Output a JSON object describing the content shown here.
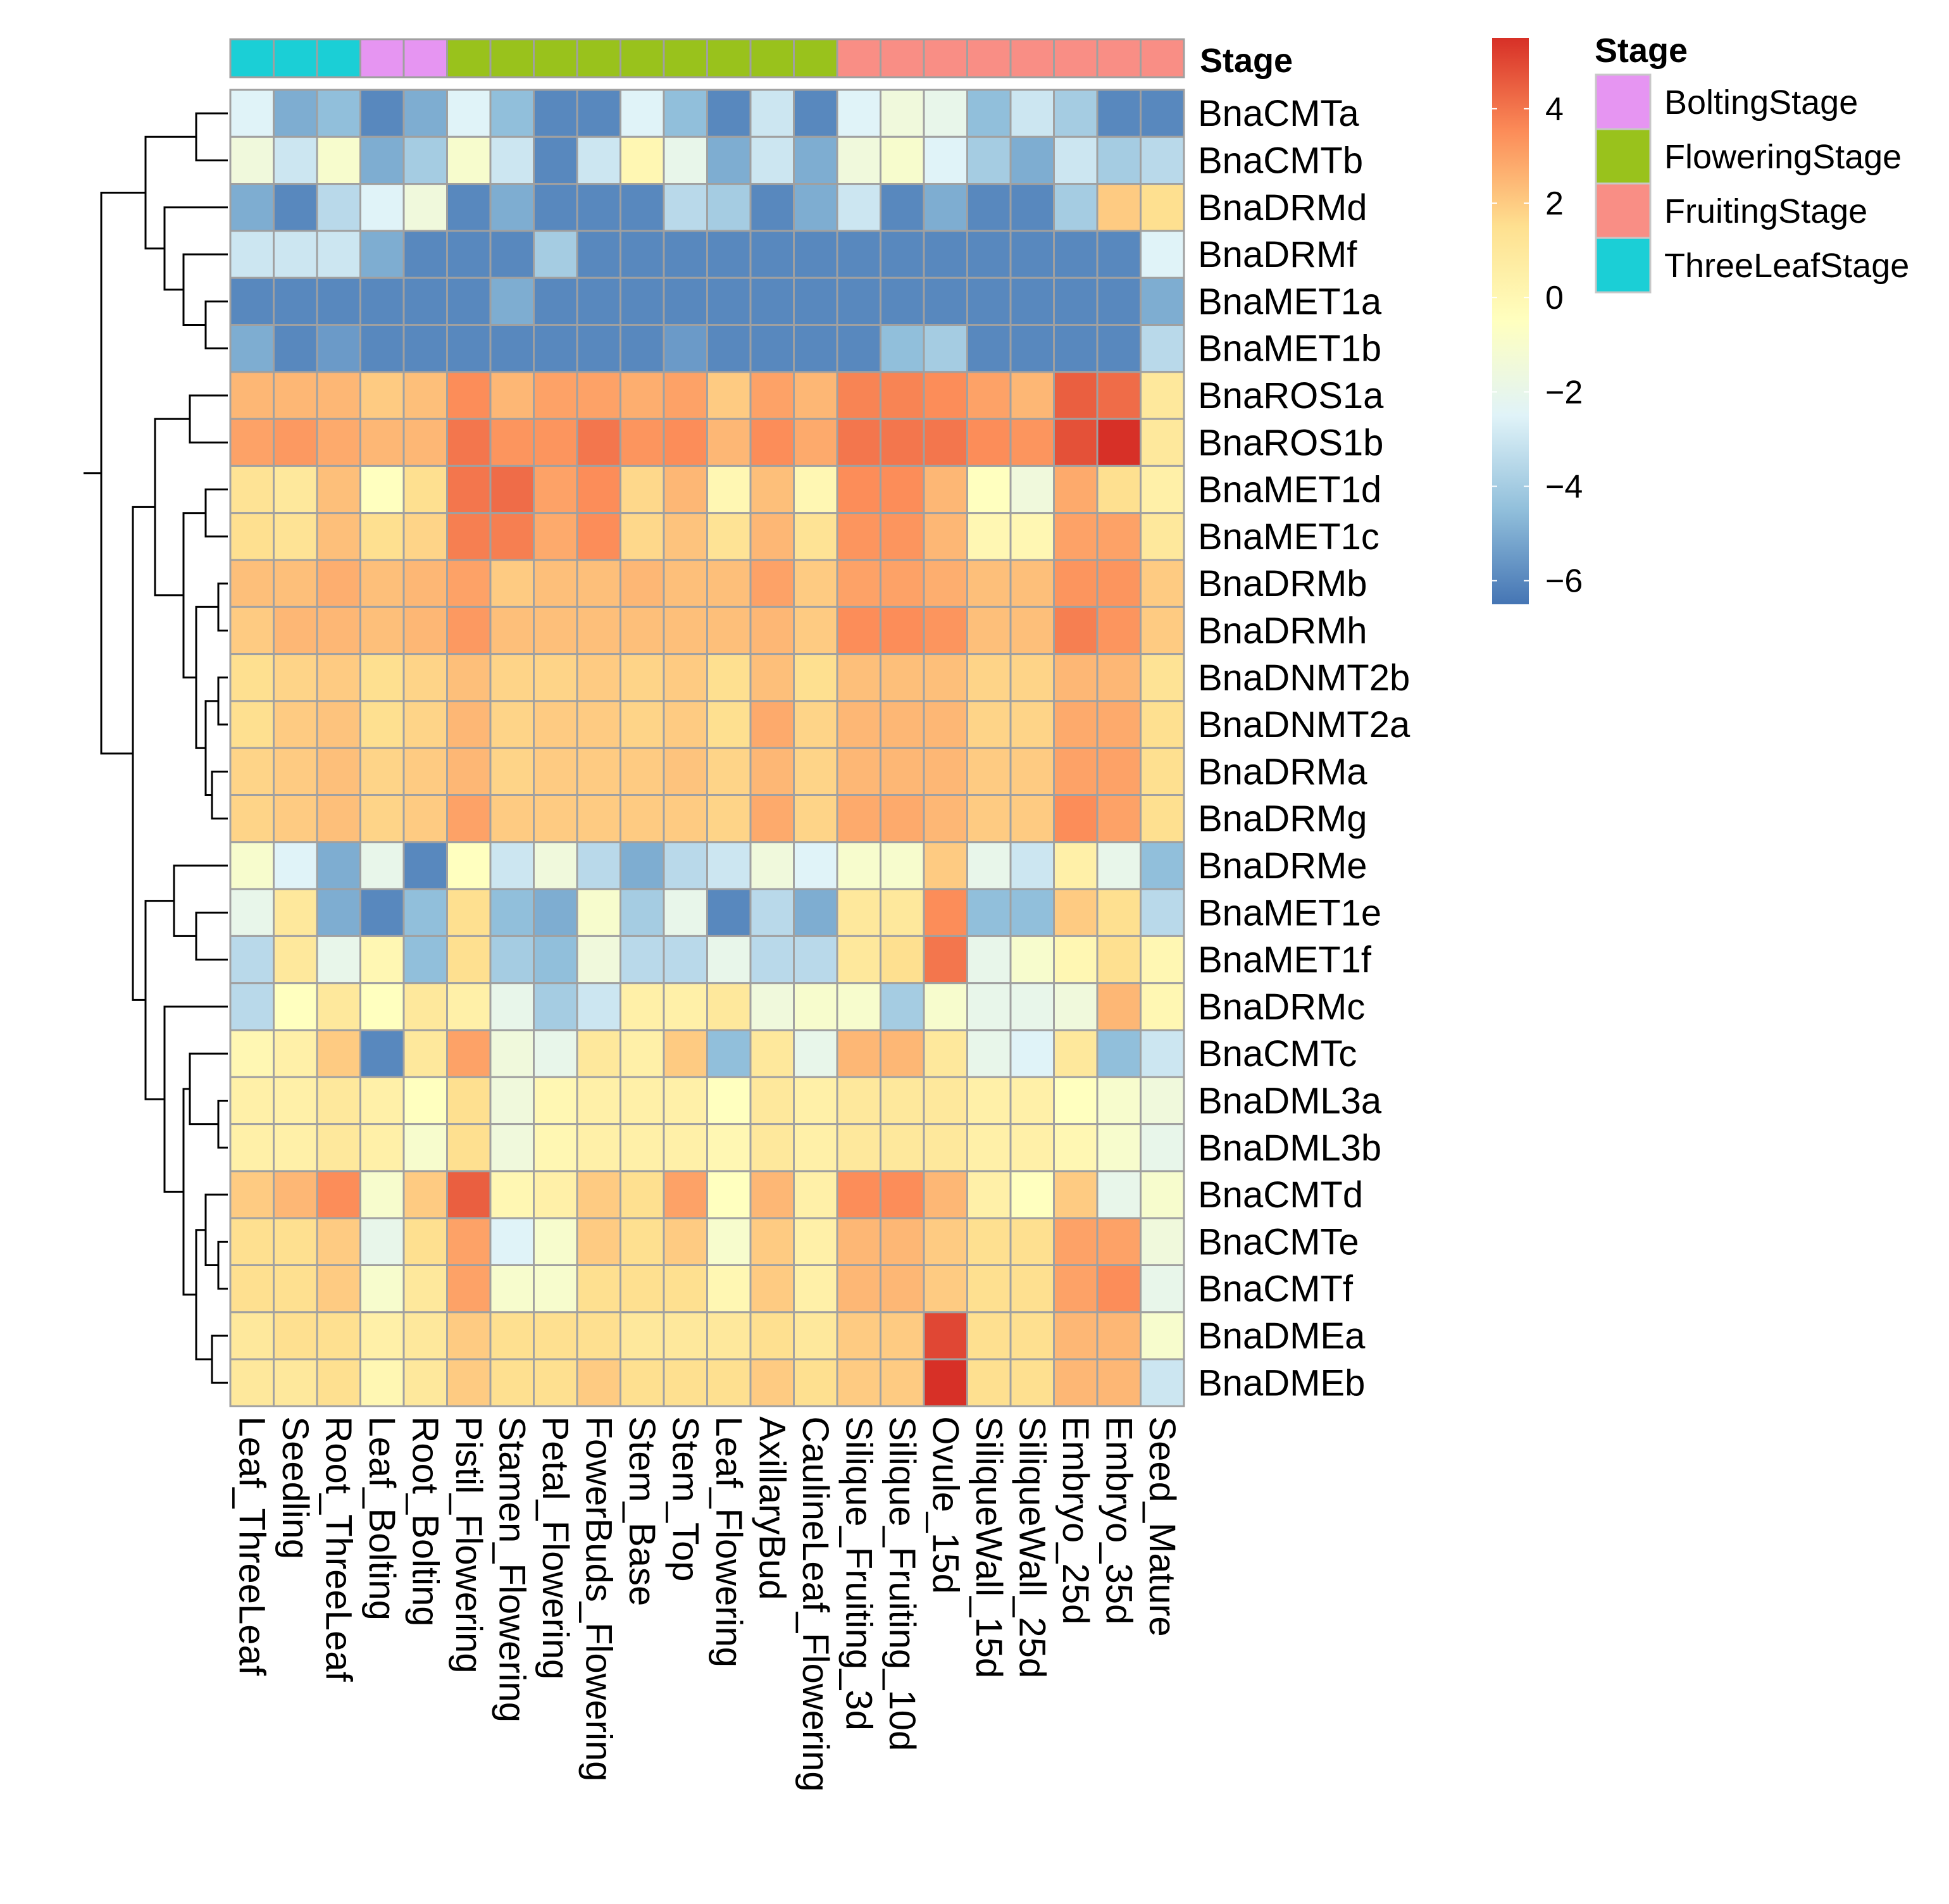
{
  "chart_data": {
    "type": "heatmap",
    "title": "",
    "annotation_title": "Stage",
    "legend_title": "Stage",
    "colorbar_ticks": [
      4,
      2,
      0,
      -2,
      -4,
      -6
    ],
    "colorbar_tick_labels": [
      "4",
      "2",
      "0",
      "−2",
      "−4",
      "−6"
    ],
    "color_range": [
      -6.5,
      5.5
    ],
    "color_stops": [
      "#4575B4",
      "#91BFDB",
      "#E0F3F8",
      "#FFFFBF",
      "#FEE090",
      "#FC8D59",
      "#D73027"
    ],
    "stages": [
      {
        "name": "BoltingStage",
        "color": "#E695F2"
      },
      {
        "name": "FloweringStage",
        "color": "#99C21C"
      },
      {
        "name": "FruitingStage",
        "color": "#F98E85"
      },
      {
        "name": "ThreeLeafStage",
        "color": "#1BCFD6"
      }
    ],
    "columns": [
      {
        "name": "Leaf_ThreeLeaf",
        "stage": "ThreeLeafStage"
      },
      {
        "name": "Seedling",
        "stage": "ThreeLeafStage"
      },
      {
        "name": "Root_ThreeLeaf",
        "stage": "ThreeLeafStage"
      },
      {
        "name": "Leaf_Bolting",
        "stage": "BoltingStage"
      },
      {
        "name": "Root_Bolting",
        "stage": "BoltingStage"
      },
      {
        "name": "Pistil_Flowering",
        "stage": "FloweringStage"
      },
      {
        "name": "Stamen_Flowering",
        "stage": "FloweringStage"
      },
      {
        "name": "Petal_Flowering",
        "stage": "FloweringStage"
      },
      {
        "name": "FowerBuds_Flowering",
        "stage": "FloweringStage"
      },
      {
        "name": "Stem_Base",
        "stage": "FloweringStage"
      },
      {
        "name": "Stem_Top",
        "stage": "FloweringStage"
      },
      {
        "name": "Leaf_Flowering",
        "stage": "FloweringStage"
      },
      {
        "name": "AxillaryBud",
        "stage": "FloweringStage"
      },
      {
        "name": "CaulineLeaf_Flowering",
        "stage": "FloweringStage"
      },
      {
        "name": "Silique_Fruiting_3d",
        "stage": "FruitingStage"
      },
      {
        "name": "Silique_Fruiting_10d",
        "stage": "FruitingStage"
      },
      {
        "name": "Ovule_15d",
        "stage": "FruitingStage"
      },
      {
        "name": "SiliqueWall_15d",
        "stage": "FruitingStage"
      },
      {
        "name": "SiliqueWall_25d",
        "stage": "FruitingStage"
      },
      {
        "name": "Embryo_25d",
        "stage": "FruitingStage"
      },
      {
        "name": "Embryo_35d",
        "stage": "FruitingStage"
      },
      {
        "name": "Seed_Mature",
        "stage": "FruitingStage"
      }
    ],
    "rows": [
      "BnaCMTa",
      "BnaCMTb",
      "BnaDRMd",
      "BnaDRMf",
      "BnaMET1a",
      "BnaMET1b",
      "BnaROS1a",
      "BnaROS1b",
      "BnaMET1d",
      "BnaMET1c",
      "BnaDRMb",
      "BnaDRMh",
      "BnaDNMT2b",
      "BnaDNMT2a",
      "BnaDRMa",
      "BnaDRMg",
      "BnaDRMe",
      "BnaMET1e",
      "BnaMET1f",
      "BnaDRMc",
      "BnaCMTc",
      "BnaDML3a",
      "BnaDML3b",
      "BnaCMTd",
      "BnaCMTe",
      "BnaCMTf",
      "BnaDMEa",
      "BnaDMEb"
    ],
    "values": [
      [
        -2.5,
        -5,
        -4.5,
        -6,
        -5,
        -2.5,
        -4.5,
        -6,
        -6,
        -2.5,
        -4.5,
        -6,
        -3,
        -6,
        -2.5,
        -1.5,
        -2,
        -4.5,
        -3,
        -4,
        -6,
        -6
      ],
      [
        -1.5,
        -3,
        -1,
        -5,
        -4,
        -1,
        -3,
        -6,
        -3,
        0,
        -2,
        -5,
        -3,
        -5,
        -1.5,
        -1,
        -2.5,
        -4,
        -5,
        -3,
        -4,
        -3.5
      ],
      [
        -5,
        -6,
        -3.5,
        -2.5,
        -1.5,
        -6,
        -5,
        -6,
        -6,
        -6,
        -3.5,
        -4,
        -6,
        -5,
        -3,
        -6,
        -5,
        -6,
        -6,
        -4,
        2,
        1.5
      ],
      [
        -3,
        -3,
        -3,
        -5,
        -6,
        -6,
        -6,
        -4,
        -6,
        -6,
        -6,
        -6,
        -6,
        -6,
        -6,
        -6,
        -6,
        -6,
        -6,
        -6,
        -6,
        -2.5
      ],
      [
        -6,
        -6,
        -6,
        -6,
        -6,
        -6,
        -5,
        -6,
        -6,
        -6,
        -6,
        -6,
        -6,
        -6,
        -6,
        -6,
        -6,
        -6,
        -6,
        -6,
        -6,
        -5
      ],
      [
        -5,
        -6,
        -5.5,
        -6,
        -6,
        -6,
        -6,
        -6,
        -6,
        -6,
        -5.5,
        -6,
        -6,
        -6,
        -6,
        -4.5,
        -4,
        -6,
        -6,
        -6,
        -6,
        -3.5
      ],
      [
        2.5,
        2.5,
        2.5,
        2,
        2.3,
        3.5,
        2.5,
        3,
        3,
        2.7,
        3,
        2,
        3,
        2.5,
        3.7,
        3.7,
        3.5,
        3,
        2.5,
        4.5,
        4.2,
        1
      ],
      [
        3,
        3.2,
        2.8,
        2.5,
        2.5,
        4,
        3.3,
        3.3,
        4,
        3.3,
        3.5,
        2.5,
        3.5,
        2.8,
        4,
        4,
        4,
        3.5,
        3.3,
        4.8,
        5.5,
        1
      ],
      [
        1.3,
        1,
        2.3,
        -0.5,
        1.5,
        4,
        4.2,
        3,
        3.5,
        1.7,
        2.5,
        0,
        2.3,
        0,
        3.5,
        3.5,
        2.5,
        -0.5,
        -1.5,
        2.8,
        1.5,
        0.5
      ],
      [
        1.5,
        1.3,
        2.3,
        1.5,
        1.8,
        3.8,
        3.8,
        2.8,
        3.5,
        1.7,
        2.2,
        1.3,
        2.5,
        1.3,
        3.3,
        3.3,
        2.5,
        0,
        0,
        3,
        3,
        1
      ],
      [
        2.3,
        2.3,
        2.7,
        2.3,
        2.5,
        3,
        2,
        2.3,
        2.3,
        2.5,
        2.3,
        2.3,
        3,
        2,
        3,
        3,
        2.7,
        2.3,
        2.3,
        3.3,
        3.3,
        2
      ],
      [
        2,
        2.5,
        2.5,
        2.3,
        2.5,
        3.2,
        2.3,
        2.3,
        2.3,
        2.3,
        2.3,
        2.3,
        2.5,
        2,
        3.5,
        3.5,
        3.3,
        2.3,
        2.3,
        3.8,
        3.3,
        2
      ],
      [
        1.5,
        1.8,
        2,
        1.5,
        1.8,
        2.3,
        1.8,
        1.8,
        2,
        1.8,
        2,
        1.5,
        2.3,
        1.5,
        2.3,
        2.3,
        2.3,
        1.8,
        1.8,
        2.5,
        2.5,
        1.3
      ],
      [
        1.5,
        2,
        2.2,
        1.5,
        1.8,
        2.5,
        1.8,
        2,
        2,
        1.8,
        2,
        1.5,
        2.8,
        1.8,
        2.5,
        2.5,
        2.5,
        1.8,
        1.8,
        2.8,
        2.8,
        1.5
      ],
      [
        1.8,
        2,
        2.3,
        1.8,
        2,
        2.5,
        1.8,
        2,
        2,
        2,
        2.2,
        1.8,
        2.5,
        1.8,
        2.5,
        2.5,
        2.5,
        2,
        2,
        3,
        3,
        1.5
      ],
      [
        1.8,
        2,
        2.3,
        1.8,
        2,
        3,
        2,
        2,
        2,
        2,
        2,
        1.8,
        2.8,
        1.8,
        2.8,
        2.8,
        2.5,
        2,
        2,
        3.5,
        3,
        1.5
      ],
      [
        -1,
        -2.5,
        -5,
        -2,
        -6,
        -0.5,
        -3,
        -1.5,
        -3.5,
        -5,
        -3.5,
        -3,
        -1.5,
        -2.5,
        -1,
        -1,
        2,
        -2,
        -3,
        0.5,
        -2,
        -4.5
      ],
      [
        -2,
        1,
        -5,
        -6,
        -4.5,
        1.5,
        -4.5,
        -5,
        -1,
        -4,
        -2,
        -6,
        -3.5,
        -5,
        1,
        1,
        3.5,
        -4.5,
        -4.5,
        2,
        1.5,
        -3.5
      ],
      [
        -3.5,
        1,
        -2,
        0,
        -4.5,
        1.5,
        -4,
        -4.5,
        -1.5,
        -3.5,
        -3.5,
        -2,
        -3.5,
        -3.5,
        1,
        1.5,
        4,
        -2,
        -1,
        0,
        1.5,
        0
      ],
      [
        -3.5,
        -0.5,
        1,
        -0.5,
        1,
        0.5,
        -2,
        -4,
        -3,
        0.5,
        0.5,
        1,
        -1.5,
        -1,
        -1,
        -4,
        -1,
        -2,
        -2,
        -1.5,
        2.5,
        0
      ],
      [
        0,
        0.5,
        2,
        -6,
        1,
        3,
        -1.5,
        -2,
        1,
        0.5,
        2,
        -4.5,
        1,
        -2,
        2.5,
        2.5,
        1,
        -2,
        -2.5,
        1,
        -4.5,
        -3
      ],
      [
        0.5,
        0.5,
        1,
        0.5,
        -0.5,
        1.5,
        -1.5,
        0,
        0.5,
        0.5,
        0.5,
        -0.5,
        1,
        0.5,
        1,
        1,
        1,
        0.5,
        0.5,
        -0.5,
        -1,
        -1.5
      ],
      [
        0.5,
        0.5,
        1,
        0.5,
        -1,
        1.5,
        -1.5,
        0,
        0.5,
        0.5,
        0.5,
        0,
        1,
        0.5,
        1,
        1,
        1,
        0.5,
        0.5,
        0,
        -1,
        -2
      ],
      [
        2,
        2.5,
        3.5,
        -1,
        2,
        4.5,
        0,
        0.5,
        2,
        1.5,
        3,
        -0.5,
        2.5,
        0.5,
        3.5,
        3.5,
        2.5,
        0.5,
        -0.5,
        2,
        -2,
        -1
      ],
      [
        1.5,
        1.5,
        2,
        -2,
        1.5,
        3,
        -2.5,
        -1,
        2,
        1.5,
        2,
        -1,
        2,
        0.5,
        2.5,
        2.5,
        2,
        1.5,
        1.5,
        3,
        3,
        -1.5
      ],
      [
        1.5,
        1.5,
        2,
        -1,
        1,
        3,
        -1,
        -1,
        1.5,
        1.5,
        1.5,
        0,
        2,
        0.5,
        2.5,
        2.5,
        2,
        1.5,
        1.5,
        3,
        3.5,
        -2
      ],
      [
        1,
        1.5,
        1.5,
        0.5,
        1,
        2,
        1.5,
        1.5,
        1.5,
        1,
        1,
        1,
        1.5,
        1,
        2,
        2,
        5,
        1.5,
        1.5,
        2.5,
        2.5,
        -1
      ],
      [
        1,
        1,
        1.5,
        0,
        1,
        2,
        1.5,
        1.5,
        2,
        1.5,
        1.5,
        1.5,
        2,
        1.5,
        2,
        2,
        5.5,
        1.5,
        1.5,
        2.5,
        2.5,
        -3
      ]
    ]
  }
}
